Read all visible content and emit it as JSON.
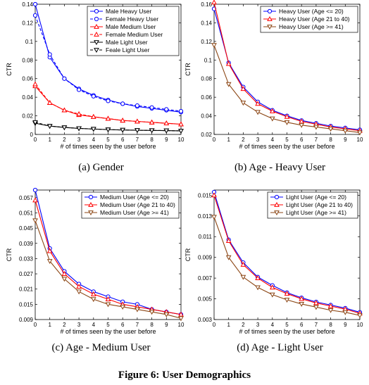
{
  "figure_caption": "Figure 6: User Demographics",
  "chart_data": [
    {
      "type": "line",
      "subcaption": "(a) Gender",
      "xlabel": "# of times seen by the user before",
      "ylabel": "CTR",
      "x": [
        0,
        1,
        2,
        3,
        4,
        5,
        6,
        7,
        8,
        9,
        10
      ],
      "xlim": [
        0,
        10
      ],
      "ylim": [
        0,
        0.14
      ],
      "yticks": [
        "0",
        "0.02",
        "0.04",
        "0.06",
        "0.08",
        "0.1",
        "0.12",
        "0.14"
      ],
      "ytick_values": [
        0,
        0.02,
        0.04,
        0.06,
        0.08,
        0.1,
        0.12,
        0.14
      ],
      "grid": false,
      "legend_position": "top-right",
      "series": [
        {
          "name": "Male Heavy User",
          "color": "#0000ff",
          "dash": "solid",
          "marker": "circle",
          "values": [
            0.14,
            0.083,
            0.06,
            0.049,
            0.042,
            0.037,
            0.033,
            0.03,
            0.028,
            0.026,
            0.024
          ]
        },
        {
          "name": "Female Heavy User",
          "color": "#0000ff",
          "dash": "dashed",
          "marker": "circle",
          "values": [
            0.128,
            0.086,
            0.06,
            0.048,
            0.041,
            0.036,
            0.033,
            0.031,
            0.029,
            0.027,
            0.025
          ]
        },
        {
          "name": "Male Medium User",
          "color": "#ff0000",
          "dash": "solid",
          "marker": "triangle-up",
          "values": [
            0.052,
            0.034,
            0.026,
            0.021,
            0.019,
            0.017,
            0.015,
            0.014,
            0.013,
            0.012,
            0.011
          ]
        },
        {
          "name": "Female Medium User",
          "color": "#ff0000",
          "dash": "dashed",
          "marker": "triangle-up",
          "values": [
            0.054,
            0.034,
            0.026,
            0.022,
            0.019,
            0.017,
            0.015,
            0.014,
            0.013,
            0.012,
            0.011
          ]
        },
        {
          "name": "Male Light User",
          "color": "#000000",
          "dash": "solid",
          "marker": "triangle-down",
          "values": [
            0.012,
            0.009,
            0.0075,
            0.0065,
            0.0058,
            0.0052,
            0.0048,
            0.0045,
            0.0043,
            0.0041,
            0.0038
          ]
        },
        {
          "name": "Feale Light User",
          "color": "#000000",
          "dash": "dashed",
          "marker": "triangle-down",
          "values": [
            0.013,
            0.009,
            0.0075,
            0.0065,
            0.0058,
            0.0052,
            0.0048,
            0.0045,
            0.0043,
            0.0041,
            0.0038
          ]
        }
      ]
    },
    {
      "type": "line",
      "subcaption": "(b) Age - Heavy User",
      "xlabel": "# of times seen by the user before",
      "ylabel": "CTR",
      "x": [
        0,
        1,
        2,
        3,
        4,
        5,
        6,
        7,
        8,
        9,
        10
      ],
      "xlim": [
        0,
        10
      ],
      "ylim": [
        0.02,
        0.16
      ],
      "yticks": [
        "0.02",
        "0.04",
        "0.06",
        "0.08",
        "0.1",
        "0.12",
        "0.14",
        "0.16"
      ],
      "ytick_values": [
        0.02,
        0.04,
        0.06,
        0.08,
        0.1,
        0.12,
        0.14,
        0.16
      ],
      "grid": false,
      "legend_position": "top-right",
      "series": [
        {
          "name": "Heavy User (Age <= 20)",
          "color": "#0000ff",
          "dash": "solid",
          "marker": "circle",
          "values": [
            0.155,
            0.097,
            0.071,
            0.055,
            0.046,
            0.04,
            0.035,
            0.032,
            0.029,
            0.027,
            0.025
          ]
        },
        {
          "name": "Heavy User (Age 21 to 40)",
          "color": "#ff0000",
          "dash": "solid",
          "marker": "triangle-up",
          "values": [
            0.162,
            0.096,
            0.069,
            0.053,
            0.045,
            0.039,
            0.034,
            0.031,
            0.028,
            0.026,
            0.024
          ]
        },
        {
          "name": "Heavy User (Age >= 41)",
          "color": "#8b4513",
          "dash": "solid",
          "marker": "triangle-down",
          "values": [
            0.116,
            0.074,
            0.054,
            0.044,
            0.037,
            0.033,
            0.03,
            0.028,
            0.026,
            0.024,
            0.022
          ]
        }
      ]
    },
    {
      "type": "line",
      "subcaption": "(c) Age - Medium User",
      "xlabel": "# of times seen by the user before",
      "ylabel": "CTR",
      "x": [
        0,
        1,
        2,
        3,
        4,
        5,
        6,
        7,
        8,
        9,
        10
      ],
      "xlim": [
        0,
        10
      ],
      "ylim": [
        0.009,
        0.06
      ],
      "yticks": [
        "0.009",
        "0.015",
        "0.021",
        "0.027",
        "0.033",
        "0.039",
        "0.045",
        "0.051",
        "0.057"
      ],
      "ytick_values": [
        0.009,
        0.015,
        0.021,
        0.027,
        0.033,
        0.039,
        0.045,
        0.051,
        0.057
      ],
      "grid": false,
      "legend_position": "top-right",
      "series": [
        {
          "name": "Medium User (Age <= 20)",
          "color": "#0000ff",
          "dash": "solid",
          "marker": "circle",
          "values": [
            0.06,
            0.037,
            0.028,
            0.023,
            0.02,
            0.018,
            0.016,
            0.015,
            0.013,
            0.012,
            0.011
          ]
        },
        {
          "name": "Medium User (Age 21 to 40)",
          "color": "#ff0000",
          "dash": "solid",
          "marker": "triangle-up",
          "values": [
            0.056,
            0.036,
            0.027,
            0.022,
            0.019,
            0.017,
            0.015,
            0.014,
            0.013,
            0.012,
            0.011
          ]
        },
        {
          "name": "Medium User (Age >= 41)",
          "color": "#8b4513",
          "dash": "solid",
          "marker": "triangle-down",
          "values": [
            0.048,
            0.032,
            0.025,
            0.02,
            0.017,
            0.015,
            0.014,
            0.013,
            0.012,
            0.011,
            0.0095
          ]
        }
      ]
    },
    {
      "type": "line",
      "subcaption": "(d) Age - Light User",
      "xlabel": "# of times seen by the user before",
      "ylabel": "CTR",
      "x": [
        0,
        1,
        2,
        3,
        4,
        5,
        6,
        7,
        8,
        9,
        10
      ],
      "xlim": [
        0,
        10
      ],
      "ylim": [
        0.003,
        0.0155
      ],
      "yticks": [
        "0.003",
        "0.005",
        "0.007",
        "0.009",
        "0.011",
        "0.013",
        "0.015"
      ],
      "ytick_values": [
        0.003,
        0.005,
        0.007,
        0.009,
        0.011,
        0.013,
        0.015
      ],
      "grid": false,
      "legend_position": "top-right",
      "series": [
        {
          "name": "Light User (Age <= 20)",
          "color": "#0000ff",
          "dash": "solid",
          "marker": "circle",
          "values": [
            0.0153,
            0.0107,
            0.0085,
            0.0071,
            0.0063,
            0.0056,
            0.0051,
            0.0047,
            0.0044,
            0.0041,
            0.0037
          ]
        },
        {
          "name": "Light User (Age 21 to 40)",
          "color": "#ff0000",
          "dash": "solid",
          "marker": "triangle-up",
          "values": [
            0.015,
            0.0106,
            0.0083,
            0.007,
            0.0061,
            0.0055,
            0.005,
            0.0046,
            0.0043,
            0.004,
            0.0036
          ]
        },
        {
          "name": "Light User (Age >= 41)",
          "color": "#8b4513",
          "dash": "solid",
          "marker": "triangle-down",
          "values": [
            0.0129,
            0.009,
            0.0071,
            0.0061,
            0.0054,
            0.0049,
            0.0045,
            0.0042,
            0.0039,
            0.0037,
            0.0034
          ]
        }
      ]
    }
  ]
}
